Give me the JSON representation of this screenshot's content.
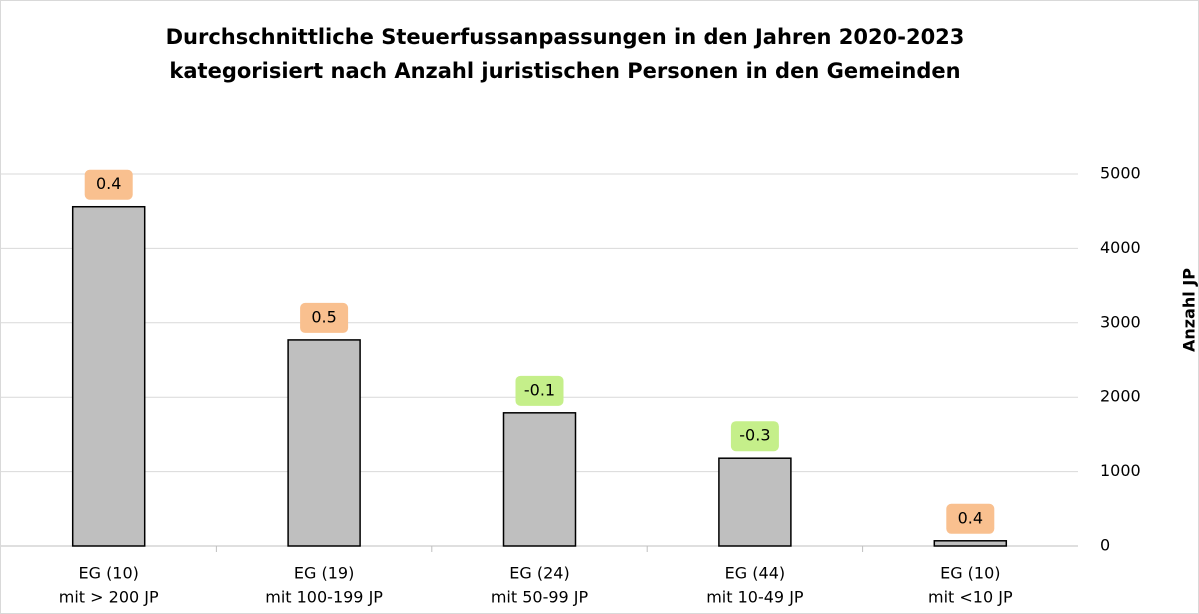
{
  "chart_data": {
    "type": "bar",
    "title": [
      "Durchschnittliche Steuerfussanpassungen in den Jahren 2020-2023",
      "kategorisiert nach Anzahl juristischen Personen in den Gemeinden"
    ],
    "categories": [
      [
        "EG (10)",
        "mit > 200 JP"
      ],
      [
        "EG (19)",
        "mit 100-199 JP"
      ],
      [
        "EG (24)",
        "mit 50-99 JP"
      ],
      [
        "EG (44)",
        "mit 10-49 JP"
      ],
      [
        "EG (10)",
        "mit <10 JP"
      ]
    ],
    "values": [
      4560,
      2770,
      1790,
      1180,
      70
    ],
    "color": "#bfbfbf",
    "adjustments": [
      0.4,
      0.5,
      -0.1,
      -0.3,
      0.4
    ],
    "positive_color": "#f9c08f",
    "negative_color": "#c5ef8a",
    "y_axis_label": "Anzahl JP",
    "y_axis_side": "right",
    "ylim": [
      0,
      5000
    ],
    "yticks": [
      0,
      1000,
      2000,
      3000,
      4000,
      5000
    ],
    "grid": true
  }
}
